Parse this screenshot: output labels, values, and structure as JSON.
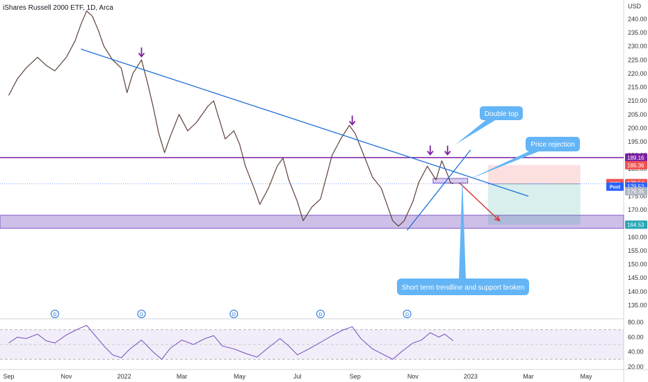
{
  "header": {
    "title": "iShares Russell 2000 ETF, 1D, Arca"
  },
  "chart_data": {
    "type": "line",
    "title": "iShares Russell 2000 ETF, 1D, Arca",
    "currency": "USD",
    "ylim": [
      130,
      247
    ],
    "y_ticks": [
      135,
      140,
      145,
      150,
      155,
      160,
      165,
      170,
      175,
      180,
      185,
      190,
      195,
      200,
      205,
      210,
      215,
      220,
      225,
      230,
      235,
      240
    ],
    "x_ticks": [
      "Sep",
      "Nov",
      "2022",
      "Mar",
      "May",
      "Jul",
      "Sep",
      "Nov",
      "2023",
      "Mar",
      "May"
    ],
    "x_month_index": [
      0,
      2,
      4,
      6,
      8,
      10,
      12,
      14,
      16,
      18,
      20
    ],
    "x_range_months": [
      -0.3,
      21.3
    ],
    "series": [
      {
        "points": [
          [
            0.0,
            212
          ],
          [
            0.3,
            218
          ],
          [
            0.6,
            222
          ],
          [
            1.0,
            226
          ],
          [
            1.3,
            223
          ],
          [
            1.6,
            221
          ],
          [
            2.0,
            226
          ],
          [
            2.3,
            232
          ],
          [
            2.5,
            238
          ],
          [
            2.7,
            243
          ],
          [
            2.9,
            241
          ],
          [
            3.1,
            236
          ],
          [
            3.3,
            230
          ],
          [
            3.6,
            225
          ],
          [
            3.9,
            222
          ],
          [
            4.1,
            213
          ],
          [
            4.3,
            220
          ],
          [
            4.6,
            225
          ],
          [
            4.8,
            217
          ],
          [
            5.0,
            208
          ],
          [
            5.2,
            198
          ],
          [
            5.4,
            191
          ],
          [
            5.6,
            197
          ],
          [
            5.9,
            205
          ],
          [
            6.2,
            199
          ],
          [
            6.5,
            202
          ],
          [
            6.9,
            208
          ],
          [
            7.1,
            210
          ],
          [
            7.3,
            203
          ],
          [
            7.5,
            196
          ],
          [
            7.8,
            199
          ],
          [
            8.0,
            194
          ],
          [
            8.2,
            186
          ],
          [
            8.5,
            178
          ],
          [
            8.7,
            172
          ],
          [
            9.0,
            178
          ],
          [
            9.3,
            186
          ],
          [
            9.5,
            189
          ],
          [
            9.7,
            181
          ],
          [
            10.0,
            173
          ],
          [
            10.2,
            166
          ],
          [
            10.5,
            171
          ],
          [
            10.8,
            174
          ],
          [
            11.0,
            182
          ],
          [
            11.2,
            190
          ],
          [
            11.5,
            196
          ],
          [
            11.8,
            201
          ],
          [
            12.0,
            198
          ],
          [
            12.3,
            190
          ],
          [
            12.6,
            182
          ],
          [
            12.9,
            178
          ],
          [
            13.1,
            172
          ],
          [
            13.3,
            166
          ],
          [
            13.5,
            164
          ],
          [
            13.7,
            166
          ],
          [
            14.0,
            173
          ],
          [
            14.2,
            180
          ],
          [
            14.5,
            186
          ],
          [
            14.8,
            181
          ],
          [
            15.0,
            188
          ],
          [
            15.2,
            183
          ],
          [
            15.3,
            180
          ],
          [
            15.4,
            179.54
          ]
        ]
      }
    ],
    "rsi": {
      "ylim": [
        18,
        82
      ],
      "ticks": [
        20,
        40,
        60,
        80
      ],
      "tick_labels": [
        "20.00",
        "40.00",
        "60.00",
        "80.00"
      ],
      "band": [
        30,
        70
      ],
      "points": [
        [
          0.0,
          52
        ],
        [
          0.3,
          60
        ],
        [
          0.6,
          58
        ],
        [
          1.0,
          64
        ],
        [
          1.3,
          55
        ],
        [
          1.6,
          52
        ],
        [
          2.0,
          63
        ],
        [
          2.4,
          71
        ],
        [
          2.7,
          76
        ],
        [
          3.0,
          62
        ],
        [
          3.3,
          48
        ],
        [
          3.6,
          36
        ],
        [
          3.9,
          32
        ],
        [
          4.2,
          44
        ],
        [
          4.6,
          56
        ],
        [
          5.0,
          40
        ],
        [
          5.3,
          30
        ],
        [
          5.6,
          45
        ],
        [
          6.0,
          56
        ],
        [
          6.4,
          50
        ],
        [
          6.8,
          58
        ],
        [
          7.1,
          62
        ],
        [
          7.4,
          48
        ],
        [
          7.8,
          44
        ],
        [
          8.2,
          38
        ],
        [
          8.6,
          33
        ],
        [
          9.0,
          46
        ],
        [
          9.4,
          58
        ],
        [
          9.7,
          48
        ],
        [
          10.0,
          36
        ],
        [
          10.4,
          44
        ],
        [
          10.8,
          53
        ],
        [
          11.2,
          62
        ],
        [
          11.6,
          70
        ],
        [
          11.9,
          74
        ],
        [
          12.2,
          58
        ],
        [
          12.6,
          44
        ],
        [
          13.0,
          36
        ],
        [
          13.3,
          30
        ],
        [
          13.6,
          40
        ],
        [
          14.0,
          52
        ],
        [
          14.3,
          56
        ],
        [
          14.6,
          66
        ],
        [
          14.9,
          60
        ],
        [
          15.1,
          64
        ],
        [
          15.4,
          55
        ]
      ]
    },
    "dividend_marks": [
      1.6,
      4.6,
      7.8,
      10.8,
      13.8
    ],
    "dividend_label": "D",
    "levels": [
      {
        "value": 189.16,
        "label": "189.16",
        "color": "#7b1fa2"
      },
      {
        "value": 186.36,
        "label": "186.36",
        "color": "#ef5350"
      },
      {
        "value": 179.54,
        "label": "179.54",
        "color": "#ef5350",
        "tag": "IWM"
      },
      {
        "value": 179.52,
        "label": "179.52",
        "color": "#2962ff",
        "tag": "Post"
      },
      {
        "value": 179.35,
        "label": "179.35",
        "color": "#b0b8c4"
      },
      {
        "value": 164.53,
        "label": "164.53",
        "color": "#26a6b6"
      }
    ],
    "support_zone": [
      163.2,
      168.0
    ],
    "resistance_level": 189.16,
    "trendline_down": [
      [
        2.5,
        229
      ],
      [
        18.0,
        175
      ]
    ],
    "trendline_up": [
      [
        13.8,
        162.5
      ],
      [
        16.0,
        192
      ]
    ],
    "arrows_down": [
      [
        4.6,
        226
      ],
      [
        11.9,
        201
      ],
      [
        14.6,
        190
      ],
      [
        15.2,
        190
      ]
    ],
    "forecast_arrow": [
      [
        15.6,
        180
      ],
      [
        17.0,
        166
      ]
    ],
    "position_box": {
      "x0": 16.6,
      "x1": 19.8,
      "entry": 179.5,
      "stop": 186.4,
      "target": 164.5
    },
    "annotations": {
      "double_top": "Double top",
      "price_rejection": "Price rejection",
      "trend_broken": "Short term trendline and support broken"
    }
  }
}
